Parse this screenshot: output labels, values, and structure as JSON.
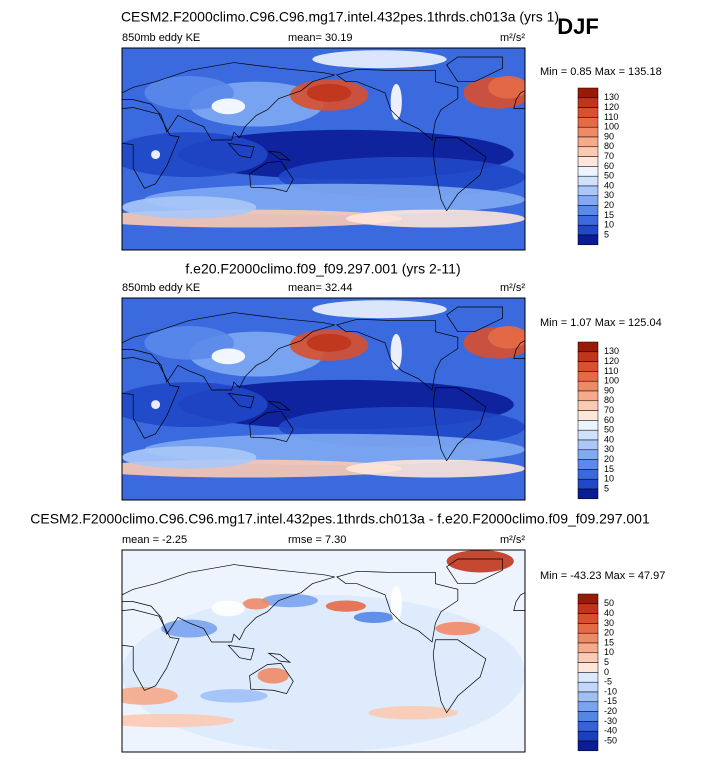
{
  "season": "DJF",
  "panels": [
    {
      "title": "CESM2.F2000climo.C96.C96.mg17.intel.432pes.1thrds.ch013a (yrs 1)",
      "left": "850mb eddy KE",
      "center": "mean=  30.19",
      "units": "m²/s²",
      "minmax": "Min =  0.85 Max = 135.18",
      "colorbar_labels": [
        130,
        120,
        110,
        100,
        90,
        80,
        70,
        60,
        50,
        40,
        30,
        20,
        15,
        10,
        5
      ],
      "colorbar_colors": [
        "#9a1a08",
        "#c0351c",
        "#d8502e",
        "#e66a46",
        "#ef8a66",
        "#f6aa8a",
        "#fbcab2",
        "#fee6da",
        "#eef4fe",
        "#cfe1fc",
        "#a9c8f8",
        "#80aaf2",
        "#5a8aea",
        "#3a6ade",
        "#2048c8",
        "#0a1c96"
      ]
    },
    {
      "title": "f.e20.F2000climo.f09_f09.297.001 (yrs 2-11)",
      "left": "850mb eddy KE",
      "center": "mean=  32.44",
      "units": "m²/s²",
      "minmax": "Min =  1.07 Max = 125.04",
      "colorbar_labels": [
        130,
        120,
        110,
        100,
        90,
        80,
        70,
        60,
        50,
        40,
        30,
        20,
        15,
        10,
        5
      ],
      "colorbar_colors": [
        "#9a1a08",
        "#c0351c",
        "#d8502e",
        "#e66a46",
        "#ef8a66",
        "#f6aa8a",
        "#fbcab2",
        "#fee6da",
        "#eef4fe",
        "#cfe1fc",
        "#a9c8f8",
        "#80aaf2",
        "#5a8aea",
        "#3a6ade",
        "#2048c8",
        "#0a1c96"
      ]
    },
    {
      "title": "CESM2.F2000climo.C96.C96.mg17.intel.432pes.1thrds.ch013a - f.e20.F2000climo.f09_f09.297.001",
      "left": "mean =  -2.25",
      "center": "rmse =  7.30",
      "units": "m²/s²",
      "minmax": "Min = -43.23 Max =  47.97",
      "colorbar_labels": [
        50,
        40,
        30,
        20,
        15,
        10,
        5,
        0,
        -5,
        -10,
        -15,
        -20,
        -30,
        -40,
        -50
      ],
      "colorbar_colors": [
        "#9a1a08",
        "#c0351c",
        "#d8502e",
        "#e66a46",
        "#ef8a66",
        "#f6aa8a",
        "#fbcab2",
        "#fee6da",
        "#dceafd",
        "#c0d8fb",
        "#9ec0f6",
        "#7aa4f0",
        "#5486e6",
        "#3464d6",
        "#1a40bc",
        "#0a1c96"
      ]
    }
  ]
}
